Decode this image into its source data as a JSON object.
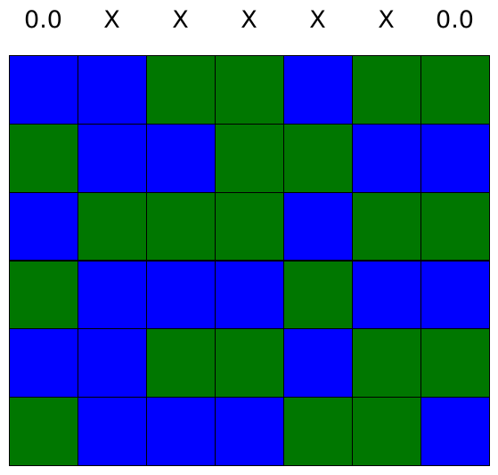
{
  "column_labels": [
    "0.0",
    "X",
    "X",
    "X",
    "X",
    "X",
    "0.0"
  ],
  "colors": {
    "B": "#0000ff",
    "G": "#007700",
    "grid_line": "#000000"
  },
  "grid": [
    [
      "B",
      "B",
      "G",
      "G",
      "B",
      "G",
      "G"
    ],
    [
      "G",
      "B",
      "B",
      "G",
      "G",
      "B",
      "B"
    ],
    [
      "B",
      "G",
      "G",
      "G",
      "B",
      "G",
      "G"
    ],
    [
      "G",
      "B",
      "B",
      "B",
      "G",
      "B",
      "B"
    ],
    [
      "B",
      "B",
      "G",
      "G",
      "B",
      "G",
      "G"
    ],
    [
      "G",
      "B",
      "B",
      "B",
      "G",
      "G",
      "B"
    ]
  ]
}
